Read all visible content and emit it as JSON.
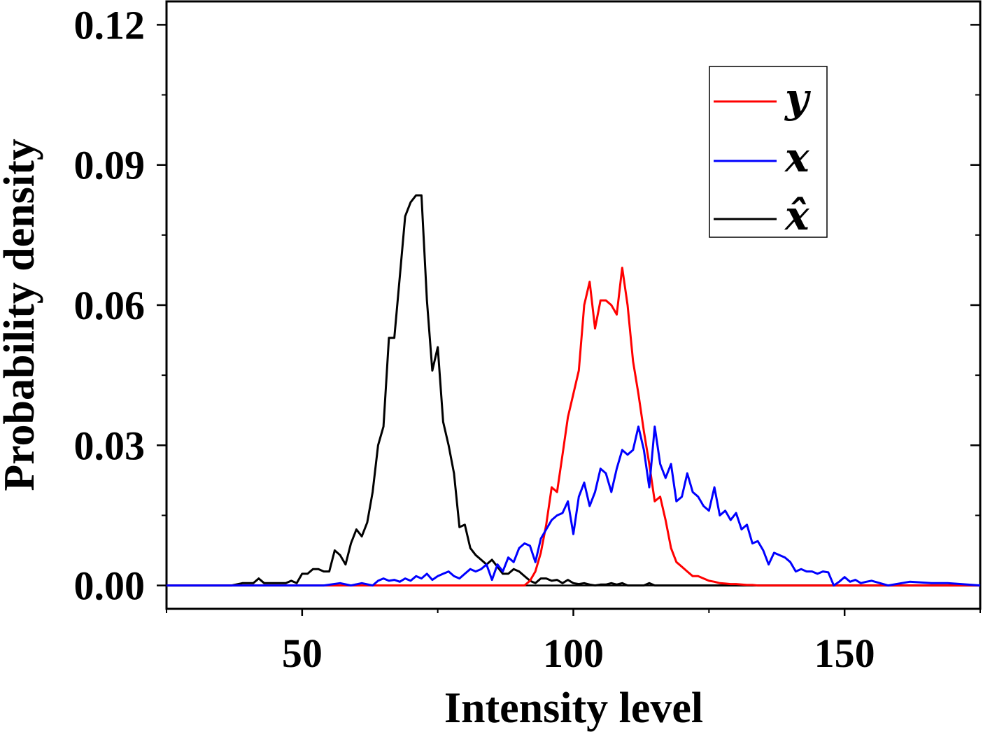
{
  "chart_data": {
    "type": "line",
    "title": "",
    "xlabel": "Intensity level",
    "ylabel": "Probability density",
    "xlim": [
      25,
      175
    ],
    "ylim": [
      -0.005,
      0.125
    ],
    "x_ticks": [
      50,
      100,
      150
    ],
    "x_tick_labels": [
      "50",
      "100",
      "150"
    ],
    "y_ticks": [
      0.0,
      0.03,
      0.06,
      0.09,
      0.12
    ],
    "y_tick_labels": [
      "0.00",
      "0.03",
      "0.06",
      "0.09",
      "0.12"
    ],
    "grid": false,
    "legend_position": "top-right",
    "series": [
      {
        "name": "y",
        "color": "#ff0000",
        "x": [
          91,
          92,
          93,
          94,
          95,
          96,
          97,
          98,
          99,
          100,
          101,
          102,
          103,
          104,
          105,
          106,
          107,
          108,
          109,
          110,
          111,
          112,
          113,
          114,
          115,
          116,
          117,
          118,
          119,
          120,
          121,
          122,
          123,
          124,
          125,
          126,
          127,
          128,
          129,
          130,
          131,
          132,
          133,
          134
        ],
        "y": [
          0,
          0.001,
          0.003,
          0.007,
          0.013,
          0.021,
          0.02,
          0.028,
          0.036,
          0.041,
          0.046,
          0.06,
          0.065,
          0.055,
          0.061,
          0.061,
          0.06,
          0.058,
          0.068,
          0.06,
          0.048,
          0.041,
          0.033,
          0.026,
          0.018,
          0.019,
          0.014,
          0.008,
          0.005,
          0.004,
          0.003,
          0.002,
          0.002,
          0.0015,
          0.001,
          0.0008,
          0.0005,
          0.0004,
          0.0003,
          0.0003,
          0.0002,
          0.0001,
          0.0001,
          0
        ]
      },
      {
        "name": "x",
        "color": "#0000ff",
        "x": [
          29,
          37,
          45,
          50,
          54,
          57,
          59,
          61,
          63,
          64,
          65,
          66,
          67,
          68,
          69,
          70,
          71,
          72,
          73,
          74,
          75,
          76,
          77,
          78,
          79,
          80,
          81,
          82,
          83,
          84,
          85,
          86,
          87,
          88,
          89,
          90,
          91,
          92,
          93,
          94,
          95,
          96,
          97,
          98,
          99,
          100,
          101,
          102,
          103,
          104,
          105,
          106,
          107,
          108,
          109,
          110,
          111,
          112,
          113,
          114,
          115,
          116,
          117,
          118,
          119,
          120,
          121,
          122,
          123,
          124,
          125,
          126,
          127,
          128,
          129,
          130,
          131,
          132,
          133,
          134,
          135,
          136,
          137,
          138,
          139,
          140,
          141,
          142,
          143,
          144,
          145,
          146,
          147,
          148,
          149,
          150,
          151,
          152,
          153,
          154,
          155,
          158,
          162,
          166,
          169
        ],
        "y": [
          0,
          0,
          0,
          0,
          0,
          0.0005,
          0,
          0.0005,
          0,
          0.001,
          0.0015,
          0.001,
          0.0012,
          0.0008,
          0.0015,
          0.001,
          0.002,
          0.0015,
          0.0025,
          0.0012,
          0.002,
          0.0025,
          0.003,
          0.002,
          0.0015,
          0.0025,
          0.0035,
          0.003,
          0.0035,
          0.0045,
          0.0012,
          0.0045,
          0.003,
          0.006,
          0.005,
          0.008,
          0.009,
          0.0085,
          0.005,
          0.01,
          0.012,
          0.014,
          0.015,
          0.0155,
          0.018,
          0.011,
          0.019,
          0.022,
          0.017,
          0.02,
          0.025,
          0.024,
          0.02,
          0.025,
          0.029,
          0.028,
          0.029,
          0.034,
          0.029,
          0.021,
          0.034,
          0.026,
          0.023,
          0.026,
          0.018,
          0.019,
          0.024,
          0.02,
          0.019,
          0.017,
          0.016,
          0.021,
          0.015,
          0.016,
          0.014,
          0.0155,
          0.012,
          0.013,
          0.009,
          0.0095,
          0.0075,
          0.0045,
          0.007,
          0.0065,
          0.006,
          0.005,
          0.003,
          0.0035,
          0.003,
          0.003,
          0.0025,
          0.003,
          0.0028,
          0,
          0.0008,
          0.0018,
          0.0008,
          0.0012,
          0.0005,
          0.0008,
          0.001,
          0,
          0.0008,
          0.0005,
          0.0005
        ]
      },
      {
        "name": "x̂",
        "color": "#000000",
        "x": [
          37,
          39,
          41,
          42,
          43,
          45,
          47,
          48,
          49,
          50,
          51,
          52,
          53,
          54,
          55,
          56,
          57,
          58,
          59,
          60,
          61,
          62,
          63,
          64,
          65,
          66,
          67,
          68,
          69,
          70,
          71,
          72,
          73,
          74,
          75,
          76,
          77,
          78,
          79,
          80,
          81,
          82,
          83,
          84,
          85,
          86,
          87,
          88,
          89,
          90,
          91,
          92,
          93,
          94,
          95,
          96,
          97,
          98,
          99,
          100,
          101,
          102,
          103,
          104,
          105,
          106,
          107,
          108,
          109,
          110,
          111,
          112,
          113,
          114,
          115,
          116,
          117,
          118,
          119,
          120,
          121,
          122,
          123,
          124,
          125,
          126,
          127,
          128,
          129,
          130
        ],
        "y": [
          0,
          0.0005,
          0.0005,
          0.0015,
          0.0005,
          0.0005,
          0.0005,
          0.001,
          0.0005,
          0.0025,
          0.0025,
          0.0035,
          0.0035,
          0.003,
          0.003,
          0.0075,
          0.0065,
          0.0045,
          0.009,
          0.012,
          0.0105,
          0.0135,
          0.02,
          0.03,
          0.034,
          0.053,
          0.053,
          0.066,
          0.079,
          0.082,
          0.0835,
          0.0835,
          0.061,
          0.046,
          0.051,
          0.035,
          0.03,
          0.024,
          0.0125,
          0.013,
          0.008,
          0.0065,
          0.0055,
          0.0045,
          0.0055,
          0.004,
          0.0025,
          0.0025,
          0.0035,
          0.003,
          0.002,
          0.001,
          0.0005,
          0.0015,
          0.0015,
          0.001,
          0.0012,
          0.0005,
          0.0012,
          0.0005,
          0.0003,
          0.0005,
          0.0002,
          0,
          0.0002,
          0.0002,
          0.0005,
          0.0002,
          0.0005,
          0,
          0,
          0,
          0,
          0.0005,
          0,
          0,
          0,
          0,
          0,
          0,
          0,
          0,
          0,
          0,
          0,
          0,
          0,
          0,
          0,
          0
        ]
      }
    ]
  }
}
